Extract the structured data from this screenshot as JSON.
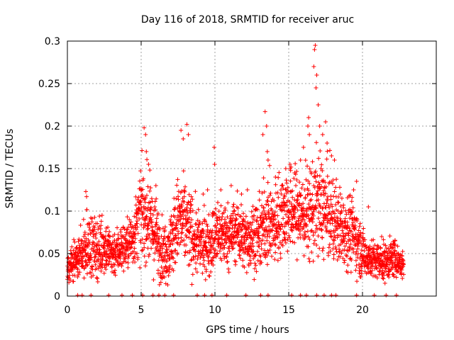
{
  "chart_data": {
    "type": "scatter",
    "title": "Day 116 of 2018, SRMTID for receiver aruc",
    "xlabel": "GPS time / hours",
    "ylabel": "SRMTID / TECUs",
    "xlim": [
      0,
      25
    ],
    "ylim": [
      0,
      0.3
    ],
    "x_ticks": [
      0,
      5,
      10,
      15,
      20
    ],
    "y_ticks": [
      0,
      0.05,
      0.1,
      0.15,
      0.2,
      0.25,
      0.3
    ],
    "x_tick_labels": [
      "0",
      "5",
      "10",
      "15",
      "20"
    ],
    "y_tick_labels": [
      "0",
      "0.05",
      "0.1",
      "0.15",
      "0.2",
      "0.25",
      "0.3"
    ],
    "grid": true,
    "marker": "+",
    "marker_color": "#ff0000",
    "series": [
      {
        "name": "aruc",
        "envelope": [
          [
            0.0,
            0.035,
            0.02
          ],
          [
            0.5,
            0.04,
            0.02
          ],
          [
            1.0,
            0.05,
            0.025
          ],
          [
            1.5,
            0.06,
            0.035
          ],
          [
            2.0,
            0.055,
            0.03
          ],
          [
            2.5,
            0.06,
            0.03
          ],
          [
            3.0,
            0.05,
            0.025
          ],
          [
            3.5,
            0.055,
            0.025
          ],
          [
            4.0,
            0.06,
            0.025
          ],
          [
            4.5,
            0.07,
            0.03
          ],
          [
            5.0,
            0.1,
            0.045
          ],
          [
            5.5,
            0.09,
            0.045
          ],
          [
            6.0,
            0.07,
            0.04
          ],
          [
            6.5,
            0.05,
            0.03
          ],
          [
            7.0,
            0.06,
            0.035
          ],
          [
            7.5,
            0.09,
            0.045
          ],
          [
            8.0,
            0.085,
            0.045
          ],
          [
            8.5,
            0.07,
            0.04
          ],
          [
            9.0,
            0.06,
            0.03
          ],
          [
            9.5,
            0.06,
            0.03
          ],
          [
            10.0,
            0.07,
            0.035
          ],
          [
            10.5,
            0.075,
            0.035
          ],
          [
            11.0,
            0.07,
            0.03
          ],
          [
            11.5,
            0.08,
            0.035
          ],
          [
            12.0,
            0.065,
            0.03
          ],
          [
            12.5,
            0.07,
            0.035
          ],
          [
            13.0,
            0.07,
            0.035
          ],
          [
            13.5,
            0.09,
            0.045
          ],
          [
            14.0,
            0.08,
            0.04
          ],
          [
            14.5,
            0.1,
            0.045
          ],
          [
            15.0,
            0.1,
            0.045
          ],
          [
            15.5,
            0.1,
            0.045
          ],
          [
            16.0,
            0.095,
            0.045
          ],
          [
            16.5,
            0.1,
            0.05
          ],
          [
            17.0,
            0.11,
            0.055
          ],
          [
            17.5,
            0.1,
            0.05
          ],
          [
            18.0,
            0.09,
            0.045
          ],
          [
            18.5,
            0.08,
            0.04
          ],
          [
            19.0,
            0.08,
            0.04
          ],
          [
            19.5,
            0.07,
            0.035
          ],
          [
            20.0,
            0.05,
            0.025
          ],
          [
            20.5,
            0.045,
            0.02
          ],
          [
            21.0,
            0.04,
            0.02
          ],
          [
            21.5,
            0.04,
            0.02
          ],
          [
            22.0,
            0.045,
            0.02
          ],
          [
            22.5,
            0.04,
            0.015
          ],
          [
            22.8,
            0.035,
            0.015
          ]
        ],
        "peaks": [
          [
            1.25,
            0.123
          ],
          [
            1.3,
            0.117
          ],
          [
            2.35,
            0.095
          ],
          [
            5.2,
            0.198
          ],
          [
            5.3,
            0.19
          ],
          [
            5.35,
            0.17
          ],
          [
            5.5,
            0.155
          ],
          [
            6.0,
            0.13
          ],
          [
            7.7,
            0.195
          ],
          [
            7.85,
            0.185
          ],
          [
            8.1,
            0.202
          ],
          [
            8.2,
            0.19
          ],
          [
            9.2,
            0.12
          ],
          [
            9.5,
            0.125
          ],
          [
            9.95,
            0.175
          ],
          [
            9.98,
            0.155
          ],
          [
            10.4,
            0.125
          ],
          [
            11.1,
            0.13
          ],
          [
            11.8,
            0.12
          ],
          [
            12.2,
            0.125
          ],
          [
            13.25,
            0.19
          ],
          [
            13.4,
            0.217
          ],
          [
            13.5,
            0.2
          ],
          [
            13.55,
            0.17
          ],
          [
            13.6,
            0.16
          ],
          [
            14.1,
            0.14
          ],
          [
            14.8,
            0.15
          ],
          [
            15.1,
            0.15
          ],
          [
            15.4,
            0.145
          ],
          [
            15.8,
            0.16
          ],
          [
            16.0,
            0.175
          ],
          [
            16.3,
            0.2
          ],
          [
            16.35,
            0.21
          ],
          [
            16.4,
            0.19
          ],
          [
            16.7,
            0.27
          ],
          [
            16.75,
            0.29
          ],
          [
            16.8,
            0.295
          ],
          [
            16.85,
            0.245
          ],
          [
            16.9,
            0.26
          ],
          [
            17.0,
            0.225
          ],
          [
            17.1,
            0.2
          ],
          [
            17.3,
            0.19
          ],
          [
            17.5,
            0.205
          ],
          [
            17.6,
            0.18
          ],
          [
            17.9,
            0.165
          ],
          [
            18.1,
            0.16
          ],
          [
            18.5,
            0.12
          ],
          [
            19.4,
            0.125
          ],
          [
            19.6,
            0.135
          ],
          [
            20.4,
            0.105
          ],
          [
            21.3,
            0.07
          ],
          [
            22.2,
            0.065
          ]
        ],
        "baseline_hits": [
          0.7,
          1.0,
          1.6,
          2.8,
          3.7,
          4.4,
          5.1,
          5.8,
          6.2,
          6.6,
          7.2,
          8.8,
          9.3,
          9.8,
          10.8,
          12.1,
          13.1,
          13.6,
          15.2,
          15.8,
          16.2,
          16.9,
          17.4,
          17.9,
          18.2,
          19.6,
          20.8,
          21.6,
          22.3
        ]
      }
    ]
  }
}
